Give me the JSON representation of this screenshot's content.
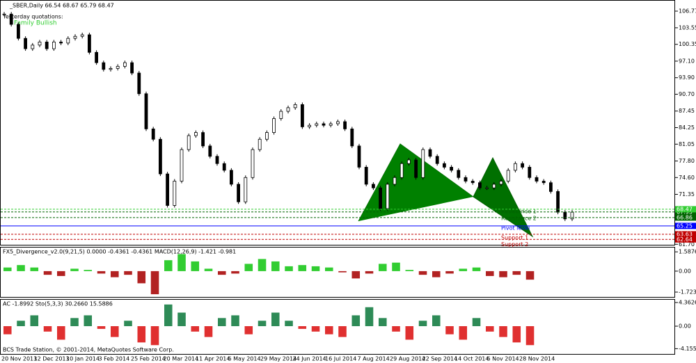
{
  "header": {
    "symbol_line": "_SBER,Daily  66.54 68.67 65.79 68.47",
    "quotes_title": "Yesterday quotations:",
    "pattern": "Family Bullish"
  },
  "chart_data": {
    "type": "candlestick",
    "close": [
      106.2,
      104.2,
      101.5,
      99.5,
      100.2,
      100.8,
      99.5,
      100.8,
      100.6,
      101.5,
      101.9,
      102.2,
      98.8,
      96.8,
      95.5,
      95.7,
      96.1,
      96.8,
      94.8,
      90.8,
      84.0,
      82.0,
      75.3,
      69.2,
      73.9,
      80.0,
      82.7,
      83.3,
      80.7,
      78.7,
      77.3,
      76.0,
      73.3,
      69.9,
      74.6,
      80.0,
      82.0,
      83.3,
      86.0,
      87.4,
      88.1,
      88.7,
      84.4,
      84.7,
      85.0,
      84.7,
      85.0,
      85.4,
      84.0,
      80.7,
      76.6,
      73.3,
      72.6,
      68.6,
      73.3,
      74.6,
      77.3,
      78.0,
      74.6,
      80.0,
      78.7,
      77.3,
      76.6,
      76.0,
      74.6,
      73.9,
      73.6,
      72.6,
      72.6,
      73.3,
      73.9,
      76.0,
      77.3,
      76.6,
      74.6,
      73.9,
      73.6,
      71.9,
      67.9,
      66.6,
      67.9
    ],
    "ylim": [
      61.6,
      108.65
    ],
    "yticks": [
      106.77,
      103.55,
      100.35,
      {
        "value": 97.1,
        "label": "97.10"
      },
      {
        "value": 93.9,
        "label": "93.90"
      },
      {
        "value": 90.7,
        "label": "90.70"
      },
      87.45,
      84.25,
      81.05,
      {
        "value": 77.8,
        "label": "77.80"
      },
      {
        "value": 74.6,
        "label": "74.60"
      },
      71.35,
      {
        "value": 61.7,
        "label": "61.70"
      }
    ],
    "levels": [
      {
        "name": "Resistance 1",
        "value": 67.95,
        "color": "#006400"
      },
      {
        "name": "Resistance 2",
        "value": 66.86,
        "color": "#006400"
      },
      {
        "name": "Pivot level",
        "value": 65.25,
        "color": "#0000ff"
      },
      {
        "name": "Support 1",
        "value": 63.63,
        "color": "#c00000"
      },
      {
        "name": "Support 2",
        "value": 62.64,
        "color": "#c00000"
      }
    ],
    "last_price": 68.47,
    "dates": [
      "20 Nov 2013",
      "12 Dec 2013",
      "10 Jan 2014",
      "3 Feb 2014",
      "25 Feb 2014",
      "20 Mar 2014",
      "11 Apr 2014",
      "6 May 2014",
      "29 May 2014",
      "24 Jun 2014",
      "16 Jul 2014",
      "7 Aug 2014",
      "29 Aug 2014",
      "22 Sep 2014",
      "14 Oct 2014",
      "6 Nov 2014",
      "28 Nov 2014"
    ],
    "panels": [
      {
        "title": "FX5_Divergence_v2.0(9,21,5) 0.0000 -0.4361 -0.4361 MACD(12,26,9) -1.421 -0.981",
        "ylim": [
          -2.18,
          1.94
        ],
        "yticks": [
          1.5876,
          {
            "value": 0,
            "label": "0.00"
          },
          -1.7234
        ],
        "up_color": "#32cd32",
        "down_color": "#b22222",
        "values": [
          0.3,
          0.5,
          0.3,
          -0.3,
          -0.4,
          0.2,
          0.1,
          -0.2,
          -0.5,
          -0.3,
          -1.0,
          -1.9,
          0.9,
          1.4,
          0.8,
          0.2,
          -0.3,
          -0.2,
          0.6,
          1.0,
          0.8,
          0.4,
          0.5,
          0.4,
          0.3,
          -0.1,
          -0.6,
          -0.2,
          0.6,
          0.7,
          0.1,
          -0.3,
          -0.5,
          -0.2,
          0.2,
          0.3,
          -0.4,
          -0.5,
          -0.3,
          -0.7
        ]
      },
      {
        "title": "AC -1.8992 Sto(5,3,3) 30.2660 15.5886",
        "ylim": [
          -5.26,
          4.88
        ],
        "yticks": [
          4.3626,
          {
            "value": 0,
            "label": "0.00"
          },
          -4.1554
        ],
        "up_color": "#2e8b57",
        "down_color": "#e03030",
        "values": [
          -1.5,
          1.0,
          2.0,
          -1.0,
          -2.5,
          1.5,
          2.0,
          -0.5,
          -2.0,
          1.0,
          -3.0,
          -3.5,
          4.0,
          2.5,
          -1.0,
          -2.0,
          1.5,
          2.0,
          -1.5,
          1.0,
          2.5,
          1.0,
          -0.5,
          -1.0,
          -1.5,
          -2.0,
          2.0,
          3.5,
          1.5,
          -1.0,
          -2.5,
          1.0,
          2.0,
          -1.5,
          -2.5,
          1.5,
          -1.0,
          -2.0,
          -3.0,
          -3.5
        ]
      }
    ],
    "footer": "BCS Trade Station, © 2001-2014, MetaQuotes Software Corp."
  }
}
